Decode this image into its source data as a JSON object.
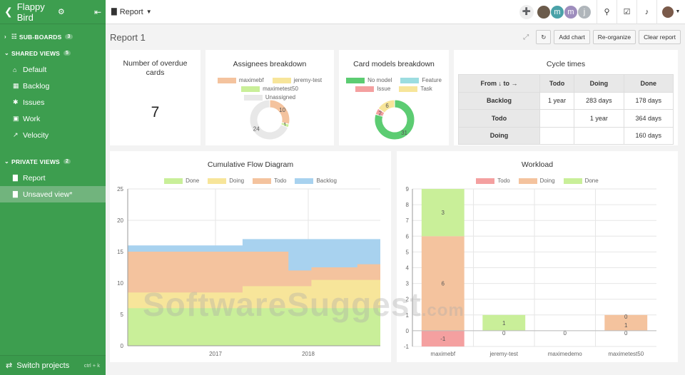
{
  "sidebar": {
    "project_name": "Flappy Bird",
    "sections": {
      "sub_boards": {
        "label": "SUB-BOARDS",
        "count": "3"
      },
      "shared_views": {
        "label": "SHARED VIEWS",
        "count": "5"
      },
      "private_views": {
        "label": "PRIVATE VIEWS",
        "count": "2"
      }
    },
    "shared_items": [
      {
        "label": "Default",
        "icon": "home-icon"
      },
      {
        "label": "Backlog",
        "icon": "grid-icon"
      },
      {
        "label": "Issues",
        "icon": "bug-icon"
      },
      {
        "label": "Work",
        "icon": "briefcase-icon"
      },
      {
        "label": "Velocity",
        "icon": "area-chart-icon"
      }
    ],
    "private_items": [
      {
        "label": "Report",
        "icon": "bar-chart-icon"
      },
      {
        "label": "Unsaved view*",
        "icon": "bar-chart-icon"
      }
    ],
    "footer": {
      "label": "Switch projects",
      "shortcut": "ctrl + k"
    }
  },
  "topbar": {
    "view_label": "Report",
    "avatars": [
      {
        "letter": "",
        "color": "#6b5b4b"
      },
      {
        "letter": "m",
        "color": "#4aa2a8"
      },
      {
        "letter": "m",
        "color": "#9e8dbd"
      },
      {
        "letter": "j",
        "color": "#b0b6bb"
      }
    ]
  },
  "page": {
    "title": "Report 1",
    "buttons": {
      "add_chart": "Add chart",
      "reorganize": "Re-organize",
      "clear_report": "Clear report"
    }
  },
  "overdue": {
    "title": "Number of overdue cards",
    "value": "7"
  },
  "assignees": {
    "title": "Assignees breakdown",
    "legend": [
      {
        "name": "maximebf",
        "color": "#f4c39e"
      },
      {
        "name": "jeremy-test",
        "color": "#f7e59a"
      },
      {
        "name": "maximetest50",
        "color": "#c9ef99"
      },
      {
        "name": "Unassigned",
        "color": "#e8e8e8"
      }
    ],
    "values": [
      10,
      0,
      1,
      24
    ],
    "labels": [
      "10",
      "",
      "1",
      "24"
    ]
  },
  "card_models": {
    "title": "Card models breakdown",
    "legend": [
      {
        "name": "No model",
        "color": "#5ccc72"
      },
      {
        "name": "Feature",
        "color": "#9cdde0"
      },
      {
        "name": "Issue",
        "color": "#f4a0a0"
      },
      {
        "name": "Task",
        "color": "#f7e59a"
      }
    ],
    "values": [
      31,
      0,
      2,
      6
    ],
    "labels": [
      "31",
      "",
      "2",
      "6"
    ]
  },
  "cycle_times": {
    "title": "Cycle times",
    "header": [
      "From ↓ to →",
      "Todo",
      "Doing",
      "Done"
    ],
    "rows": [
      [
        "Backlog",
        "1 year",
        "283 days",
        "178 days"
      ],
      [
        "Todo",
        "",
        "1 year",
        "364 days"
      ],
      [
        "Doing",
        "",
        "",
        "160 days"
      ]
    ]
  },
  "chart_data": [
    {
      "type": "area",
      "title": "Cumulative Flow Diagram",
      "legend": [
        {
          "name": "Done",
          "color": "#c9ef99"
        },
        {
          "name": "Doing",
          "color": "#f7e59a"
        },
        {
          "name": "Todo",
          "color": "#f4c39e"
        },
        {
          "name": "Backlog",
          "color": "#a8d2ef"
        }
      ],
      "x_ticks": [
        "2017",
        "2018"
      ],
      "y_ticks": [
        "0",
        "5",
        "10",
        "15",
        "20",
        "25"
      ],
      "ylim": [
        0,
        25
      ],
      "series": [
        {
          "name": "Done",
          "values": [
            6,
            6,
            6,
            6,
            6,
            6,
            6,
            6,
            6,
            6,
            6,
            6
          ]
        },
        {
          "name": "Doing",
          "values": [
            8.5,
            8.5,
            8.5,
            8.5,
            8.5,
            9.5,
            9.5,
            9.5,
            10.5,
            10.5,
            10.5,
            11
          ]
        },
        {
          "name": "Todo",
          "values": [
            15,
            15,
            15,
            15,
            15,
            15,
            15,
            12,
            12.5,
            12.5,
            13,
            13
          ]
        },
        {
          "name": "Backlog",
          "values": [
            16,
            16,
            16,
            16,
            16,
            17,
            17,
            17,
            17,
            17,
            17,
            17
          ]
        }
      ]
    },
    {
      "type": "bar",
      "title": "Workload",
      "legend": [
        {
          "name": "Todo",
          "color": "#f4a0a0"
        },
        {
          "name": "Doing",
          "color": "#f4c39e"
        },
        {
          "name": "Done",
          "color": "#c9ef99"
        }
      ],
      "categories": [
        "maximebf",
        "jeremy-test",
        "maximedemo",
        "maximetest50"
      ],
      "y_ticks": [
        "-1",
        "0",
        "1",
        "2",
        "3",
        "4",
        "5",
        "6",
        "7",
        "8",
        "9"
      ],
      "ylim": [
        -1,
        9
      ],
      "series": [
        {
          "name": "Todo",
          "values": [
            -1,
            0,
            0,
            0
          ]
        },
        {
          "name": "Doing",
          "values": [
            6,
            0,
            0,
            1
          ]
        },
        {
          "name": "Done",
          "values": [
            3,
            1,
            0,
            0
          ]
        }
      ],
      "bar_labels": [
        [
          "-1",
          "6",
          "3"
        ],
        [
          "0",
          "",
          "1"
        ],
        [
          "0",
          "",
          ""
        ],
        [
          "0",
          "1",
          "0"
        ]
      ]
    }
  ],
  "watermark": {
    "text": "SoftwareSuggest",
    "suffix": ".com"
  }
}
